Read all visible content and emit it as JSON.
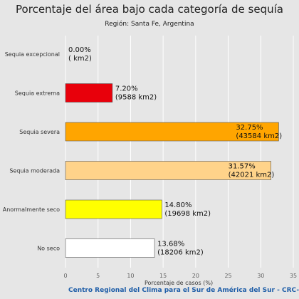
{
  "chart_data": {
    "type": "bar",
    "orientation": "horizontal",
    "title": "Porcentaje del área bajo cada categoría de sequía",
    "subtitle": "Región: Santa Fe, Argentina",
    "xlabel": "Porcentaje de casos (%)",
    "footer": "Centro Regional del Clima para el Sur de América del Sur - CRC-SAS",
    "xlim": [
      0,
      35
    ],
    "xticks": [
      "0",
      "5",
      "10",
      "15",
      "20",
      "25",
      "30",
      "35"
    ],
    "grid": true,
    "categories": [
      "Sequia excepcional",
      "Sequia extrema",
      "Sequia severa",
      "Sequia moderada",
      "Anormalmente seco",
      "No seco"
    ],
    "values": [
      0.0,
      7.2,
      32.75,
      31.57,
      14.8,
      13.68
    ],
    "colors": [
      "#8b0000",
      "#e8000b",
      "#ffa500",
      "#ffd38a",
      "#ffff00",
      "#ffffff"
    ],
    "labels": [
      [
        "0.00%",
        "( km2)"
      ],
      [
        "7.20%",
        "(9588 km2)"
      ],
      [
        "32.75%",
        "(43584 km2)"
      ],
      [
        "31.57%",
        "(42021 km2)"
      ],
      [
        "14.80%",
        "(19698 km2)"
      ],
      [
        "13.68%",
        "(18206 km2)"
      ]
    ]
  }
}
